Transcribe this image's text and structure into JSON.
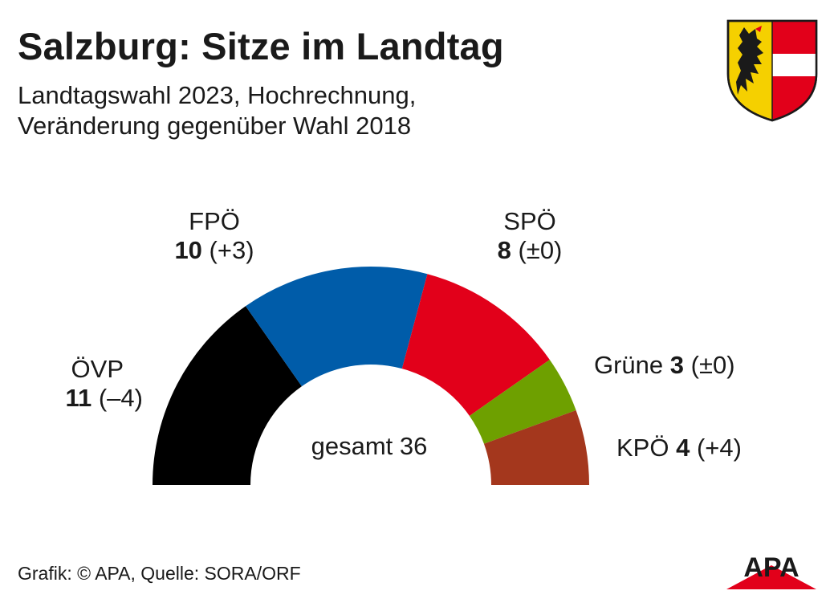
{
  "title": "Salzburg: Sitze im Landtag",
  "subtitle": [
    "Landtagswahl 2023, Hochrechnung,",
    "Veränderung gegenüber Wahl 2018"
  ],
  "chart_data": {
    "type": "pie",
    "shape": "semicircle-parliament",
    "total_label": "gesamt 36",
    "total": 36,
    "series": [
      {
        "name": "ÖVP",
        "seats": 11,
        "seats_label": "11",
        "change": -4,
        "change_label": "(–4)",
        "color": "#000000"
      },
      {
        "name": "FPÖ",
        "seats": 10,
        "seats_label": "10",
        "change": 3,
        "change_label": "(+3)",
        "color": "#005ca9"
      },
      {
        "name": "SPÖ",
        "seats": 8,
        "seats_label": "8",
        "change": 0,
        "change_label": "(±0)",
        "color": "#e2001a"
      },
      {
        "name": "Grüne",
        "seats": 3,
        "seats_label": "3",
        "change": 0,
        "change_label": "(±0)",
        "color": "#6ea000"
      },
      {
        "name": "KPÖ",
        "seats": 4,
        "seats_label": "4",
        "change": 4,
        "change_label": "(+4)",
        "color": "#a4371d"
      }
    ]
  },
  "source": "Grafik: © APA, Quelle: SORA/ORF",
  "logo": {
    "text": "APA",
    "icon": "apa-logo",
    "color": "#e2001a"
  },
  "crest": {
    "icon": "salzburg-coat-of-arms",
    "colors": {
      "gold": "#f5d000",
      "red": "#e2001a",
      "white": "#ffffff",
      "black": "#1a1a1a"
    }
  }
}
